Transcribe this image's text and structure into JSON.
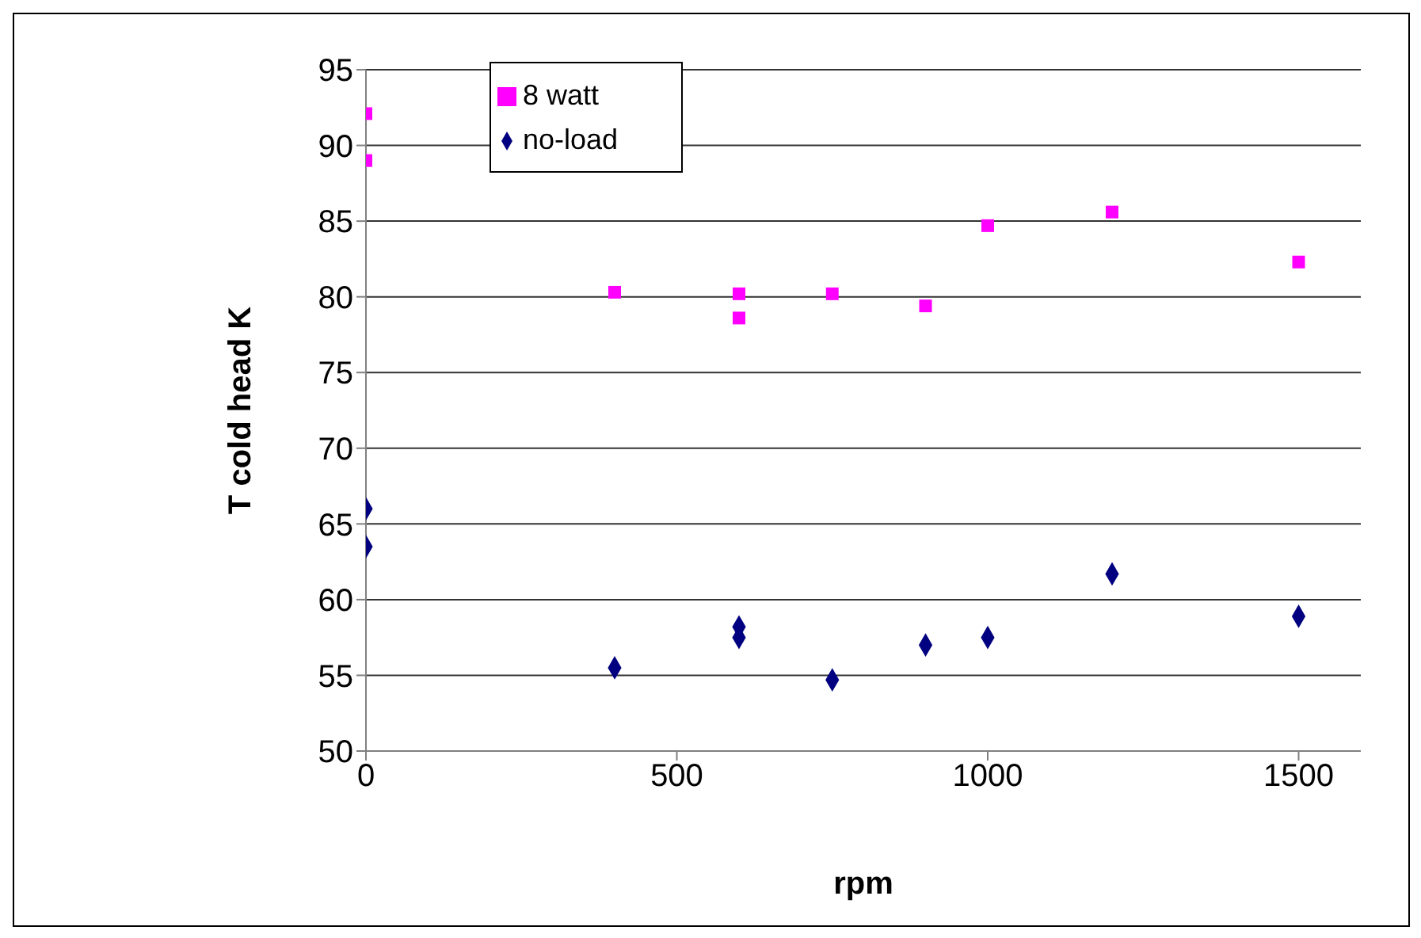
{
  "chart_data": {
    "type": "scatter",
    "xlabel": "rpm",
    "ylabel": "T cold head   K",
    "xlim": [
      0,
      1600
    ],
    "xticks": [
      0,
      500,
      1000,
      1500
    ],
    "ylim": [
      50,
      95
    ],
    "yticks": [
      50,
      55,
      60,
      65,
      70,
      75,
      80,
      85,
      90,
      95
    ],
    "grid": "y",
    "legend": "top left",
    "series": [
      {
        "name": "no-load",
        "color": "#000080",
        "marker": "diamond",
        "x": [
          0,
          0,
          400,
          600,
          600,
          750,
          900,
          1000,
          1200,
          1500
        ],
        "values": [
          66.0,
          63.5,
          55.5,
          58.2,
          57.5,
          54.7,
          57.0,
          57.5,
          61.7,
          58.9
        ]
      },
      {
        "name": "8 watt",
        "color": "#ff00ff",
        "marker": "square",
        "x": [
          0,
          0,
          400,
          600,
          600,
          750,
          900,
          1000,
          1200,
          1500
        ],
        "values": [
          92.1,
          89.0,
          80.3,
          80.2,
          78.6,
          80.2,
          79.4,
          84.7,
          85.6,
          82.3
        ]
      }
    ]
  }
}
